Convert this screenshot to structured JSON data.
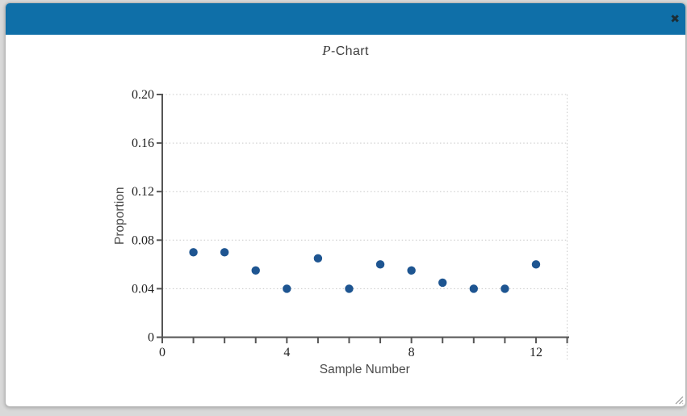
{
  "dialog": {
    "close_icon": "✖"
  },
  "colors": {
    "page_bg": "#d9d9d9",
    "dialog_bg": "#ffffff",
    "dialog_border": "#b8b8b8",
    "header_bg": "#0f6fa8",
    "close_icon_color": "#1c2d35",
    "chart_title_color": "#3b3b3b",
    "point": "#1e5591",
    "axis": "#555555",
    "grid": "#c8c8c8",
    "tick_label": "#222222",
    "axis_title": "#4a4a4a",
    "grip_color": "#999999"
  },
  "chart_data": {
    "type": "scatter",
    "title_italic": "P",
    "title_rest": "-Chart",
    "xlabel": "Sample Number",
    "ylabel": "Proportion",
    "x": [
      1,
      2,
      3,
      4,
      5,
      6,
      7,
      8,
      9,
      10,
      11,
      12
    ],
    "values": [
      0.07,
      0.07,
      0.055,
      0.04,
      0.065,
      0.04,
      0.06,
      0.055,
      0.045,
      0.04,
      0.04,
      0.06
    ],
    "xlim": [
      0,
      13
    ],
    "ylim": [
      0,
      0.2
    ],
    "yticks": [
      0,
      0.04,
      0.08,
      0.12,
      0.16,
      0.2
    ],
    "ytick_labels": [
      "0",
      "0.04",
      "0.08",
      "0.12",
      "0.16",
      "0.20"
    ],
    "xticks_minor": [
      0,
      1,
      2,
      3,
      4,
      5,
      6,
      7,
      8,
      9,
      10,
      11,
      12,
      13
    ],
    "xticks_labeled": [
      {
        "value": 0,
        "label": "0"
      },
      {
        "value": 4,
        "label": "4"
      },
      {
        "value": 8,
        "label": "8"
      },
      {
        "value": 12,
        "label": "12"
      }
    ],
    "grid": "horizontal dotted lines at each y tick, dotted right/top frame",
    "legend_position": "none"
  }
}
